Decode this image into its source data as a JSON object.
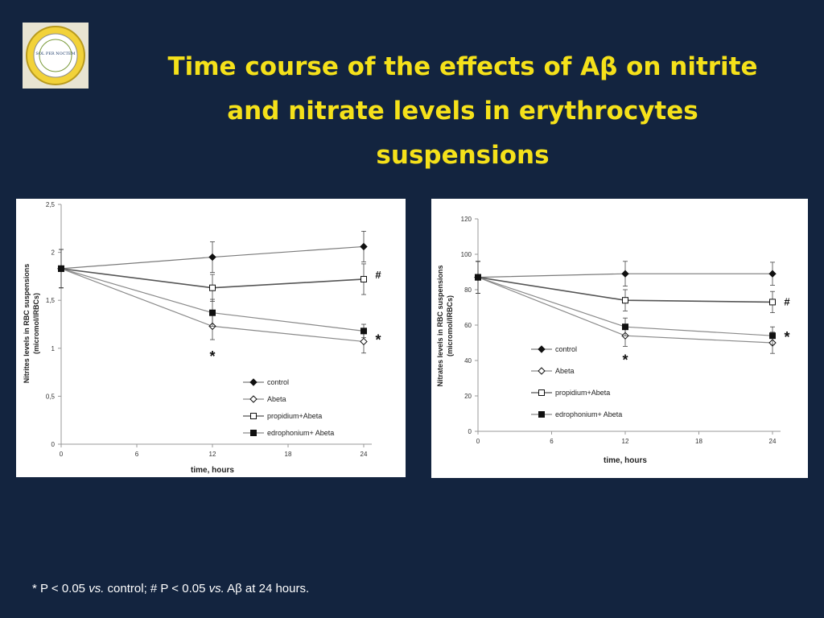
{
  "slide": {
    "title_lines": [
      "Time course of the effects of Aβ  on nitrite",
      "and nitrate levels  in erythrocytes",
      "suspensions"
    ],
    "logo_text": "SOL PER NOCTEM",
    "footnote": {
      "p1": "* P < 0.05 ",
      "vs1": "vs.",
      "p2": " control; # P < 0.05 ",
      "vs2": "vs.",
      "p3": " Aβ at 24 hours."
    }
  },
  "chart_data": [
    {
      "type": "line",
      "ylabel_lines": [
        "Nitrites levels in RBC suspensions",
        "(micromol/lRBCs)"
      ],
      "xlabel": "time, hours",
      "x": [
        0,
        12,
        24
      ],
      "xticks": [
        "0",
        "6",
        "12",
        "18",
        "24"
      ],
      "xtick_values": [
        0,
        6,
        12,
        18,
        24
      ],
      "yticks": [
        "0",
        "0,5",
        "1",
        "1,5",
        "2",
        "2,5"
      ],
      "ytick_values": [
        0,
        0.5,
        1,
        1.5,
        2,
        2.5
      ],
      "xlim": [
        0,
        24
      ],
      "ylim": [
        0,
        2.5
      ],
      "legend_position": "lower-right",
      "series": [
        {
          "name": "control",
          "values": [
            1.83,
            1.95,
            2.06
          ],
          "errors": [
            0.2,
            0.16,
            0.16
          ],
          "marker": "diamond-filled"
        },
        {
          "name": "Abeta",
          "values": [
            1.83,
            1.23,
            1.07
          ],
          "errors": [
            0.2,
            0.14,
            0.12
          ],
          "marker": "diamond-open"
        },
        {
          "name": "propidium+Abeta",
          "values": [
            1.83,
            1.63,
            1.72
          ],
          "errors": [
            0.2,
            0.14,
            0.16
          ],
          "marker": "square-open"
        },
        {
          "name": "edrophonium+ Abeta",
          "values": [
            1.83,
            1.37,
            1.18
          ],
          "errors": [
            0.2,
            0.14,
            0.07
          ],
          "marker": "square-filled"
        }
      ],
      "annotations": [
        {
          "text": "#",
          "x": 24,
          "y": 1.76
        },
        {
          "text": "*",
          "x": 24,
          "y": 1.12
        },
        {
          "text": "*",
          "x": 12,
          "y": 0.95
        }
      ]
    },
    {
      "type": "line",
      "ylabel_lines": [
        "Nitrates levels in RBC suspensions",
        "(micromol/lRBCs)"
      ],
      "xlabel": "time, hours",
      "x": [
        0,
        12,
        24
      ],
      "xticks": [
        "0",
        "6",
        "12",
        "18",
        "24"
      ],
      "xtick_values": [
        0,
        6,
        12,
        18,
        24
      ],
      "yticks": [
        "0",
        "20",
        "40",
        "60",
        "80",
        "100",
        "120"
      ],
      "ytick_values": [
        0,
        20,
        40,
        60,
        80,
        100,
        120
      ],
      "xlim": [
        0,
        24
      ],
      "ylim": [
        0,
        120
      ],
      "legend_position": "lower-left",
      "series": [
        {
          "name": "control",
          "values": [
            87,
            89,
            89
          ],
          "errors": [
            9,
            7,
            6.5
          ],
          "marker": "diamond-filled"
        },
        {
          "name": "Abeta",
          "values": [
            87,
            54,
            50
          ],
          "errors": [
            9,
            6,
            6
          ],
          "marker": "diamond-open"
        },
        {
          "name": "propidium+Abeta",
          "values": [
            87,
            74,
            73
          ],
          "errors": [
            9,
            6,
            6
          ],
          "marker": "square-open"
        },
        {
          "name": "edrophonium+ Abeta",
          "values": [
            87,
            59,
            54
          ],
          "errors": [
            9,
            5,
            5
          ],
          "marker": "square-filled"
        }
      ],
      "annotations": [
        {
          "text": "#",
          "x": 24,
          "y": 73
        },
        {
          "text": "*",
          "x": 24,
          "y": 55
        },
        {
          "text": "*",
          "x": 12,
          "y": 42
        }
      ]
    }
  ]
}
